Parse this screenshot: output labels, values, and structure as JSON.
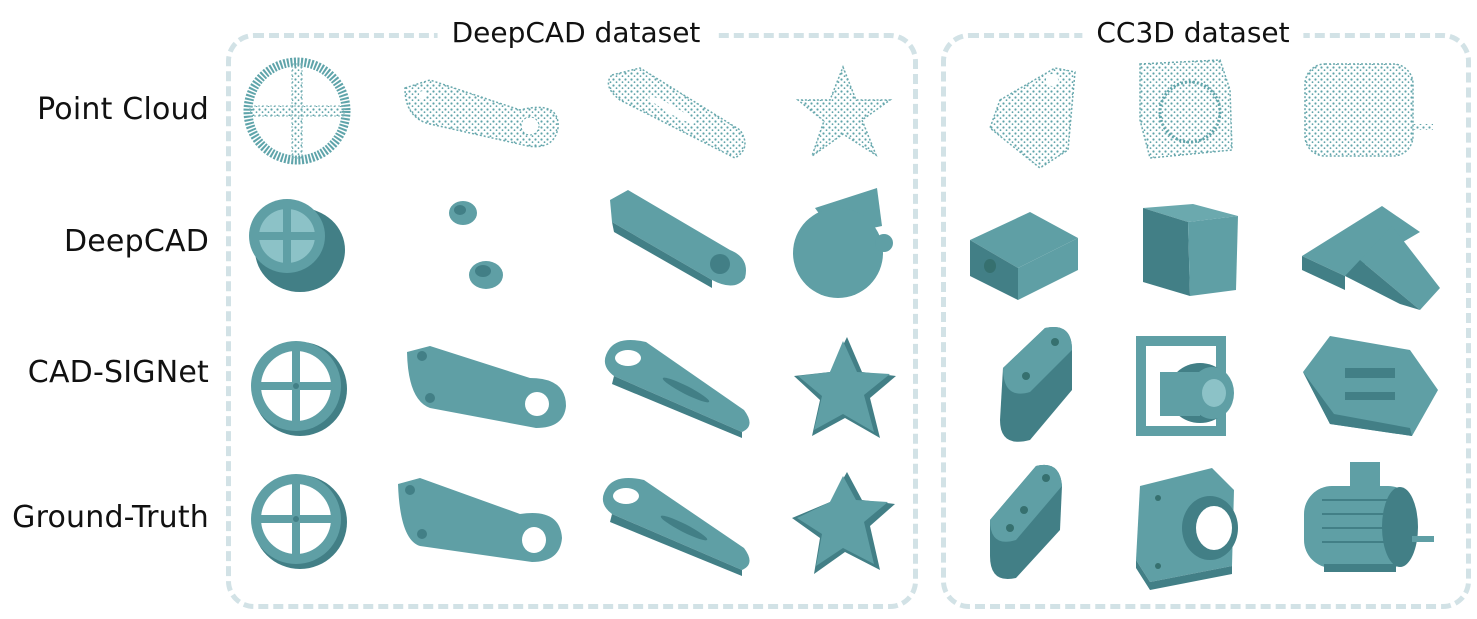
{
  "figure": {
    "panels": [
      {
        "title": "DeepCAD dataset"
      },
      {
        "title": "CC3D dataset"
      }
    ],
    "row_labels": [
      "Point Cloud",
      "DeepCAD",
      "CAD-SIGNet",
      "Ground-Truth"
    ],
    "colors": {
      "shape_fill": "#5f9fa5",
      "shape_dark": "#427f86",
      "shape_light": "#8cc2c7",
      "points": "#5fa4aa",
      "panel_border": "#d2e2e6"
    }
  }
}
